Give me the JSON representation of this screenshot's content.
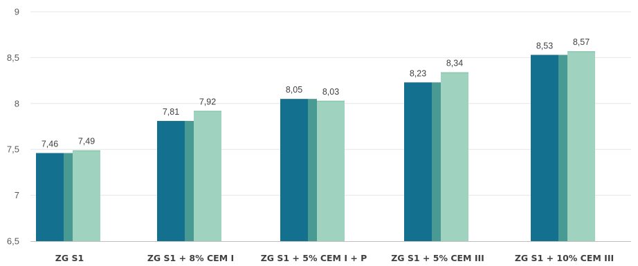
{
  "chart_data": {
    "type": "bar",
    "title": "",
    "xlabel": "",
    "ylabel": "",
    "ylim": [
      6.5,
      9
    ],
    "yticks": [
      {
        "value": 6.5,
        "label": "6,5"
      },
      {
        "value": 7,
        "label": "7"
      },
      {
        "value": 7.5,
        "label": "7,5"
      },
      {
        "value": 8,
        "label": "8"
      },
      {
        "value": 8.5,
        "label": "8,5"
      },
      {
        "value": 9,
        "label": "9"
      }
    ],
    "grid": true,
    "legend": "none",
    "categories": [
      "ZG S1",
      "ZG S1 + 8% CEM I",
      "ZG S1 + 5% CEM I + P",
      "ZG S1 + 5% CEM III",
      "ZG S1 + 10% CEM III"
    ],
    "series": [
      {
        "values": [
          7.46,
          7.81,
          8.05,
          8.23,
          8.53
        ],
        "labels": [
          "7,46",
          "7,81",
          "8,05",
          "8,23",
          "8,53"
        ],
        "color": "#14708f",
        "side_color": "#4a9a94"
      },
      {
        "values": [
          7.49,
          7.92,
          8.03,
          8.34,
          8.57
        ],
        "labels": [
          "7,49",
          "7,92",
          "8,03",
          "8,34",
          "8,57"
        ],
        "color": "#9fd3bf",
        "side_color": "#8cc7b1"
      }
    ]
  }
}
